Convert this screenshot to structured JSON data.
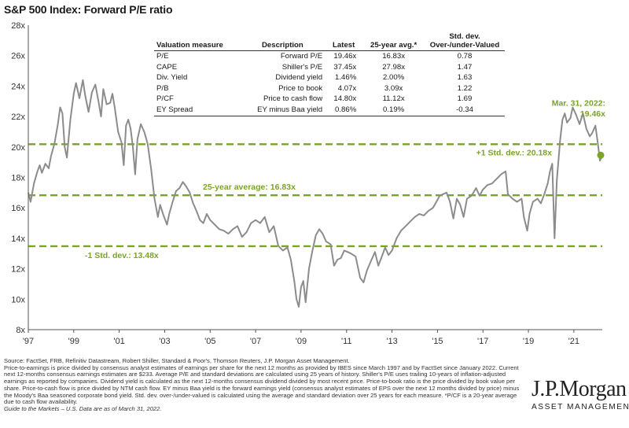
{
  "title": "S&P 500 Index: Forward P/E ratio",
  "colors": {
    "line": "#8c8c8c",
    "avg_lines": "#7aa32b",
    "endpoint": "#7aa32b"
  },
  "chart_data": {
    "type": "line",
    "ylim": [
      8,
      28
    ],
    "yticks": [
      "8x",
      "10x",
      "12x",
      "14x",
      "16x",
      "18x",
      "20x",
      "22x",
      "24x",
      "26x",
      "28x"
    ],
    "xlim": [
      1997.0,
      2022.25
    ],
    "xticks": [
      {
        "x": 1997,
        "label": "'97"
      },
      {
        "x": 1999,
        "label": "'99"
      },
      {
        "x": 2001,
        "label": "'01"
      },
      {
        "x": 2003,
        "label": "'03"
      },
      {
        "x": 2005,
        "label": "'05"
      },
      {
        "x": 2007,
        "label": "'07"
      },
      {
        "x": 2009,
        "label": "'09"
      },
      {
        "x": 2011,
        "label": "'11"
      },
      {
        "x": 2013,
        "label": "'13"
      },
      {
        "x": 2015,
        "label": "'15"
      },
      {
        "x": 2017,
        "label": "'17"
      },
      {
        "x": 2019,
        "label": "'19"
      },
      {
        "x": 2021,
        "label": "'21"
      }
    ],
    "series": [
      {
        "points": [
          [
            1997.0,
            17.0
          ],
          [
            1997.1,
            16.4
          ],
          [
            1997.25,
            17.6
          ],
          [
            1997.4,
            18.4
          ],
          [
            1997.5,
            18.8
          ],
          [
            1997.6,
            18.3
          ],
          [
            1997.75,
            18.9
          ],
          [
            1997.9,
            18.6
          ],
          [
            1998.0,
            19.4
          ],
          [
            1998.15,
            20.2
          ],
          [
            1998.3,
            21.5
          ],
          [
            1998.4,
            22.6
          ],
          [
            1998.5,
            22.2
          ],
          [
            1998.6,
            20.0
          ],
          [
            1998.7,
            19.3
          ],
          [
            1998.85,
            21.8
          ],
          [
            1999.0,
            23.5
          ],
          [
            1999.1,
            24.2
          ],
          [
            1999.25,
            23.2
          ],
          [
            1999.4,
            24.4
          ],
          [
            1999.5,
            23.4
          ],
          [
            1999.65,
            22.3
          ],
          [
            1999.8,
            23.6
          ],
          [
            1999.95,
            24.1
          ],
          [
            2000.1,
            22.9
          ],
          [
            2000.2,
            22.0
          ],
          [
            2000.3,
            23.8
          ],
          [
            2000.45,
            22.8
          ],
          [
            2000.6,
            22.9
          ],
          [
            2000.7,
            23.5
          ],
          [
            2000.8,
            22.6
          ],
          [
            2000.95,
            21.0
          ],
          [
            2001.1,
            20.3
          ],
          [
            2001.2,
            18.8
          ],
          [
            2001.3,
            21.4
          ],
          [
            2001.4,
            21.8
          ],
          [
            2001.5,
            21.2
          ],
          [
            2001.6,
            20.0
          ],
          [
            2001.7,
            18.2
          ],
          [
            2001.8,
            20.5
          ],
          [
            2001.95,
            21.5
          ],
          [
            2002.1,
            21.0
          ],
          [
            2002.25,
            20.2
          ],
          [
            2002.4,
            18.6
          ],
          [
            2002.55,
            16.6
          ],
          [
            2002.7,
            15.4
          ],
          [
            2002.8,
            16.2
          ],
          [
            2002.95,
            15.5
          ],
          [
            2003.1,
            14.9
          ],
          [
            2003.2,
            15.6
          ],
          [
            2003.35,
            16.4
          ],
          [
            2003.5,
            17.1
          ],
          [
            2003.65,
            17.3
          ],
          [
            2003.8,
            17.7
          ],
          [
            2003.95,
            17.4
          ],
          [
            2004.1,
            17.0
          ],
          [
            2004.25,
            16.3
          ],
          [
            2004.4,
            15.8
          ],
          [
            2004.55,
            15.2
          ],
          [
            2004.7,
            15.0
          ],
          [
            2004.85,
            15.6
          ],
          [
            2005.0,
            15.2
          ],
          [
            2005.2,
            14.9
          ],
          [
            2005.4,
            14.6
          ],
          [
            2005.6,
            14.5
          ],
          [
            2005.8,
            14.3
          ],
          [
            2006.0,
            14.6
          ],
          [
            2006.2,
            14.8
          ],
          [
            2006.4,
            14.1
          ],
          [
            2006.6,
            14.4
          ],
          [
            2006.8,
            15.0
          ],
          [
            2007.0,
            15.2
          ],
          [
            2007.2,
            15.0
          ],
          [
            2007.4,
            15.4
          ],
          [
            2007.6,
            14.4
          ],
          [
            2007.8,
            14.8
          ],
          [
            2008.0,
            13.5
          ],
          [
            2008.2,
            13.2
          ],
          [
            2008.4,
            13.4
          ],
          [
            2008.55,
            12.6
          ],
          [
            2008.7,
            11.2
          ],
          [
            2008.8,
            10.0
          ],
          [
            2008.9,
            9.5
          ],
          [
            2009.0,
            10.8
          ],
          [
            2009.1,
            11.2
          ],
          [
            2009.2,
            9.8
          ],
          [
            2009.35,
            12.0
          ],
          [
            2009.5,
            13.2
          ],
          [
            2009.65,
            14.2
          ],
          [
            2009.8,
            14.6
          ],
          [
            2009.95,
            14.3
          ],
          [
            2010.1,
            13.8
          ],
          [
            2010.3,
            13.6
          ],
          [
            2010.45,
            12.2
          ],
          [
            2010.6,
            12.6
          ],
          [
            2010.75,
            12.7
          ],
          [
            2010.9,
            13.2
          ],
          [
            2011.05,
            13.1
          ],
          [
            2011.2,
            13.0
          ],
          [
            2011.4,
            12.8
          ],
          [
            2011.6,
            11.4
          ],
          [
            2011.75,
            11.1
          ],
          [
            2011.9,
            11.9
          ],
          [
            2012.1,
            12.6
          ],
          [
            2012.25,
            13.1
          ],
          [
            2012.4,
            12.2
          ],
          [
            2012.55,
            12.8
          ],
          [
            2012.7,
            13.4
          ],
          [
            2012.85,
            12.9
          ],
          [
            2013.0,
            13.2
          ],
          [
            2013.2,
            14.0
          ],
          [
            2013.4,
            14.5
          ],
          [
            2013.6,
            14.8
          ],
          [
            2013.8,
            15.1
          ],
          [
            2014.0,
            15.4
          ],
          [
            2014.2,
            15.6
          ],
          [
            2014.4,
            15.5
          ],
          [
            2014.6,
            15.8
          ],
          [
            2014.8,
            16.0
          ],
          [
            2014.95,
            16.4
          ],
          [
            2015.1,
            16.8
          ],
          [
            2015.25,
            16.9
          ],
          [
            2015.4,
            17.0
          ],
          [
            2015.55,
            16.4
          ],
          [
            2015.7,
            15.3
          ],
          [
            2015.85,
            16.6
          ],
          [
            2016.0,
            16.2
          ],
          [
            2016.15,
            15.4
          ],
          [
            2016.3,
            16.6
          ],
          [
            2016.5,
            16.8
          ],
          [
            2016.7,
            17.3
          ],
          [
            2016.85,
            16.8
          ],
          [
            2017.0,
            17.2
          ],
          [
            2017.2,
            17.5
          ],
          [
            2017.4,
            17.6
          ],
          [
            2017.6,
            17.9
          ],
          [
            2017.8,
            18.2
          ],
          [
            2018.0,
            18.4
          ],
          [
            2018.1,
            16.9
          ],
          [
            2018.3,
            16.6
          ],
          [
            2018.5,
            16.4
          ],
          [
            2018.7,
            16.6
          ],
          [
            2018.8,
            15.4
          ],
          [
            2018.95,
            14.5
          ],
          [
            2019.05,
            15.6
          ],
          [
            2019.2,
            16.4
          ],
          [
            2019.4,
            16.6
          ],
          [
            2019.55,
            16.3
          ],
          [
            2019.7,
            16.9
          ],
          [
            2019.85,
            17.6
          ],
          [
            2019.95,
            18.4
          ],
          [
            2020.05,
            18.9
          ],
          [
            2020.15,
            14.0
          ],
          [
            2020.25,
            17.8
          ],
          [
            2020.4,
            20.5
          ],
          [
            2020.5,
            21.8
          ],
          [
            2020.6,
            22.2
          ],
          [
            2020.7,
            21.6
          ],
          [
            2020.85,
            21.9
          ],
          [
            2020.95,
            22.6
          ],
          [
            2021.1,
            22.1
          ],
          [
            2021.25,
            21.5
          ],
          [
            2021.4,
            22.2
          ],
          [
            2021.55,
            21.2
          ],
          [
            2021.7,
            20.7
          ],
          [
            2021.8,
            20.9
          ],
          [
            2021.95,
            21.4
          ],
          [
            2022.05,
            20.3
          ],
          [
            2022.15,
            19.1
          ],
          [
            2022.25,
            19.46
          ]
        ]
      }
    ],
    "reference_lines": [
      {
        "y": 20.18,
        "label": "+1 Std. dev.: 20.18x"
      },
      {
        "y": 16.83,
        "label": "25-year average: 16.83x"
      },
      {
        "y": 13.48,
        "label": "-1 Std. dev.: 13.48x"
      }
    ],
    "endpoint": {
      "x": 2022.25,
      "y": 19.46,
      "label_line1": "Mar. 31, 2022:",
      "label_line2": "19.46x"
    }
  },
  "table": {
    "headers": [
      "Valuation measure",
      "Description",
      "Latest",
      "25-year avg.*",
      "Std. dev. Over-/under-Valued"
    ],
    "rows": [
      [
        "P/E",
        "Forward P/E",
        "19.46x",
        "16.83x",
        "0.78"
      ],
      [
        "CAPE",
        "Shiller's P/E",
        "37.45x",
        "27.98x",
        "1.47"
      ],
      [
        "Div. Yield",
        "Dividend yield",
        "1.46%",
        "2.00%",
        "1.63"
      ],
      [
        "P/B",
        "Price to book",
        "4.07x",
        "3.09x",
        "1.22"
      ],
      [
        "P/CF",
        "Price to cash flow",
        "14.80x",
        "11.12x",
        "1.69"
      ],
      [
        "EY Spread",
        "EY minus Baa yield",
        "0.86%",
        "0.19%",
        "-0.34"
      ]
    ]
  },
  "notes": {
    "source": "Source: FactSet, FRB, Refinitiv Datastream, Robert Shiller, Standard & Poor's, Thomson Reuters, J.P. Morgan Asset Management.",
    "body": "Price-to-earnings is price divided by consensus analyst estimates of earnings per share for the next 12 months as provided by IBES since March 1997 and by FactSet since January 2022. Current next 12-months consensus earnings estimates are $233. Average P/E and standard deviations are calculated using 25 years of history. Shiller's P/E uses trailing 10-years of inflation-adjusted earnings as reported by companies. Dividend yield is calculated as the next 12-months consensus dividend divided by most recent price. Price-to-book ratio is the price divided by book value per share. Price-to-cash flow is price divided by NTM cash flow. EY minus Baa yield is the forward earnings yield (consensus analyst estimates of EPS over the next 12 months divided by price) minus the Moody's Baa seasoned corporate bond yield. Std. dev. over-/under-valued is calculated using the average and standard deviation over 25 years for each measure. *P/CF is a 20-year average due to cash flow availability.",
    "guide": "Guide to the Markets – U.S. Data are as of March 31, 2022."
  },
  "logo": {
    "brand": "J.P.Morgan",
    "sub": "ASSET MANAGEMENT"
  }
}
